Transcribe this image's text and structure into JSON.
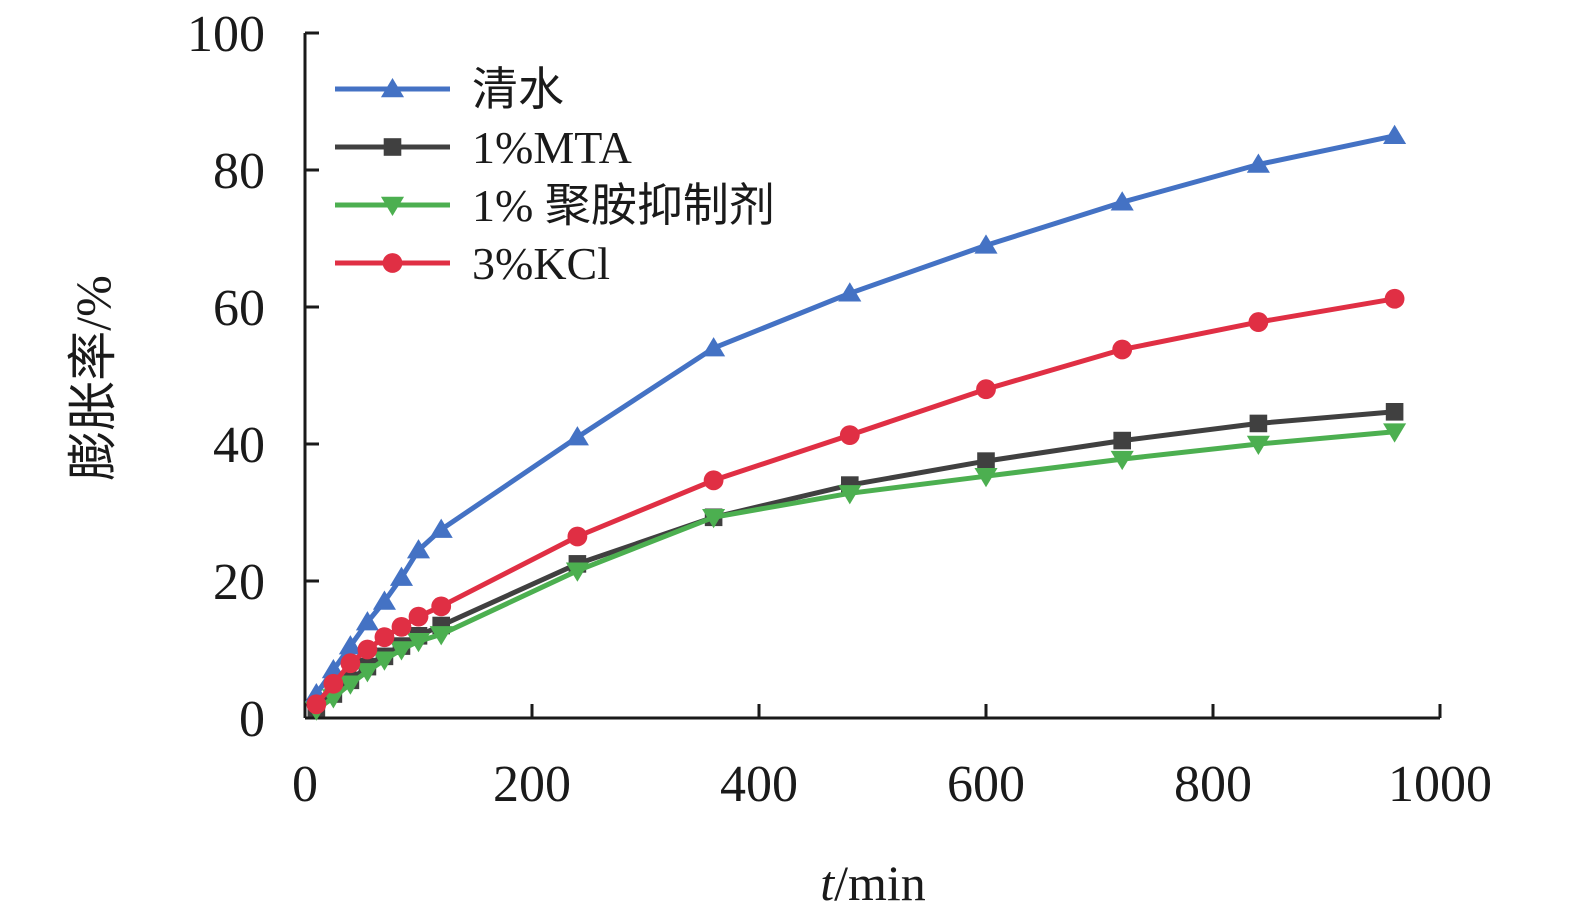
{
  "chart_data": {
    "type": "line",
    "xlabel_italic": "t",
    "xlabel_rest": "/min",
    "ylabel": "膨胀率/%",
    "xlim": [
      0,
      1000
    ],
    "ylim": [
      0,
      100
    ],
    "x_ticks": [
      0,
      200,
      400,
      600,
      800,
      1000
    ],
    "y_ticks": [
      0,
      20,
      40,
      60,
      80,
      100
    ],
    "legend_position": "top-left",
    "grid": false,
    "series": [
      {
        "name": "清水",
        "color": "#4472c4",
        "marker": "triangle-up",
        "points": [
          [
            10,
            3.5
          ],
          [
            25,
            7
          ],
          [
            40,
            10.5
          ],
          [
            55,
            14
          ],
          [
            70,
            17
          ],
          [
            85,
            20.5
          ],
          [
            100,
            24.5
          ],
          [
            120,
            27.5
          ],
          [
            240,
            41
          ],
          [
            360,
            54
          ],
          [
            480,
            62
          ],
          [
            600,
            69
          ],
          [
            720,
            75.3
          ],
          [
            840,
            80.8
          ],
          [
            960,
            85
          ]
        ]
      },
      {
        "name": "1%MTA",
        "color": "#404040",
        "marker": "square",
        "points": [
          [
            10,
            1.5
          ],
          [
            25,
            3.5
          ],
          [
            40,
            5.5
          ],
          [
            55,
            7.5
          ],
          [
            70,
            9
          ],
          [
            85,
            10.5
          ],
          [
            100,
            12
          ],
          [
            120,
            13.5
          ],
          [
            240,
            22.5
          ],
          [
            360,
            29.3
          ],
          [
            480,
            34
          ],
          [
            600,
            37.5
          ],
          [
            720,
            40.5
          ],
          [
            840,
            43
          ],
          [
            960,
            44.7
          ]
        ]
      },
      {
        "name": "1% 聚胺抑制剂",
        "color": "#4caf50",
        "marker": "triangle-down",
        "points": [
          [
            10,
            1.2
          ],
          [
            25,
            3
          ],
          [
            40,
            5
          ],
          [
            55,
            6.8
          ],
          [
            70,
            8.5
          ],
          [
            85,
            10
          ],
          [
            100,
            11.2
          ],
          [
            120,
            12.2
          ],
          [
            240,
            21.5
          ],
          [
            360,
            29.3
          ],
          [
            480,
            32.8
          ],
          [
            600,
            35.3
          ],
          [
            720,
            37.8
          ],
          [
            840,
            40
          ],
          [
            960,
            41.8
          ]
        ]
      },
      {
        "name": "3%KCl",
        "color": "#e02f44",
        "marker": "circle",
        "points": [
          [
            10,
            2
          ],
          [
            25,
            5
          ],
          [
            40,
            8
          ],
          [
            55,
            10
          ],
          [
            70,
            11.8
          ],
          [
            85,
            13.3
          ],
          [
            100,
            14.8
          ],
          [
            120,
            16.3
          ],
          [
            240,
            26.5
          ],
          [
            360,
            34.7
          ],
          [
            480,
            41.3
          ],
          [
            600,
            48
          ],
          [
            720,
            53.8
          ],
          [
            840,
            57.8
          ],
          [
            960,
            61.2
          ]
        ]
      }
    ]
  }
}
